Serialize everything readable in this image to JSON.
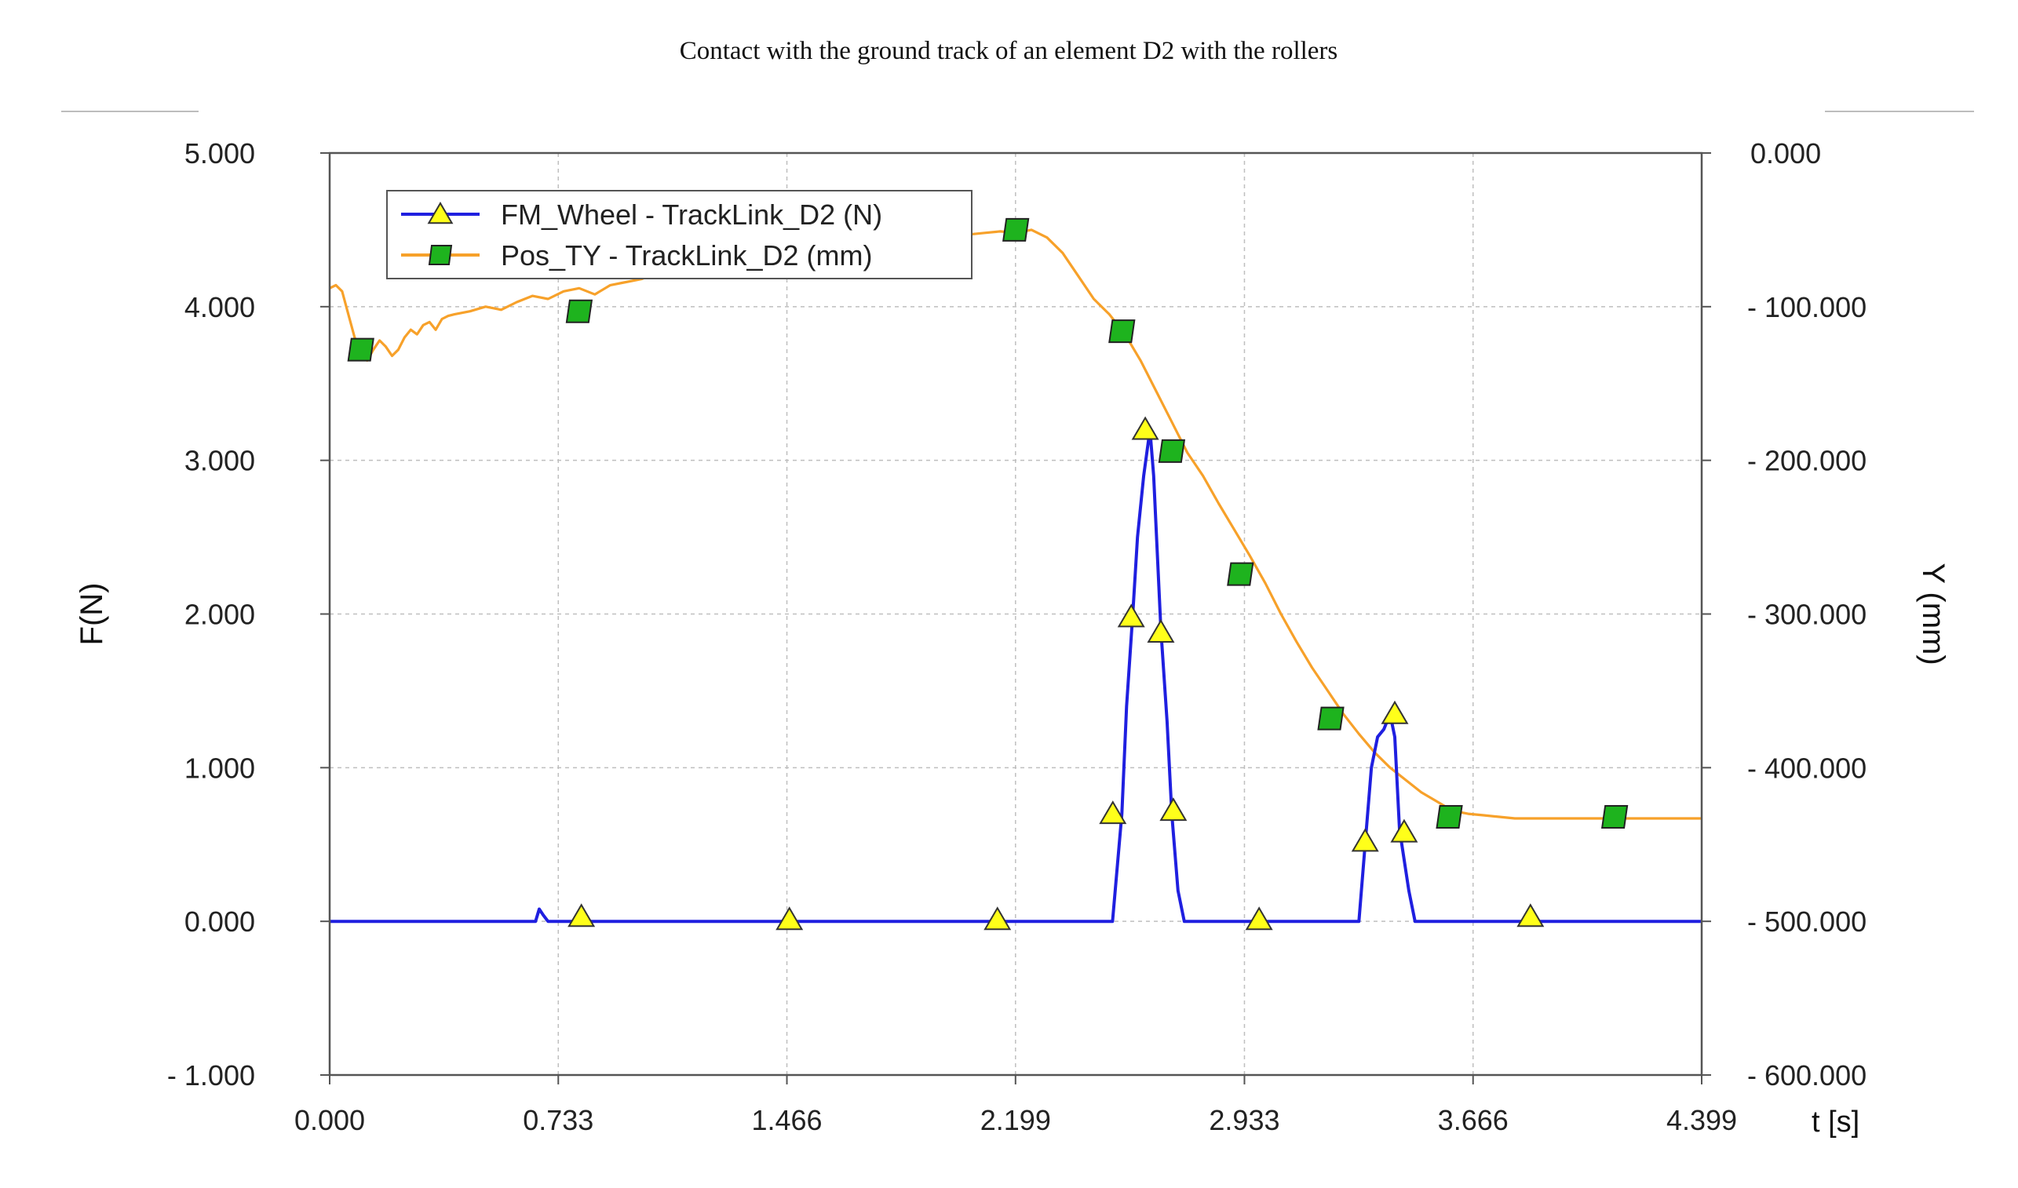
{
  "chart_data": {
    "type": "line",
    "title": "Contact with the ground track of an element D2 with the rollers",
    "xlabel": "t [s]",
    "ylabel": "F(N)",
    "y2label": "Y (mm)",
    "xlim": [
      0,
      4.399
    ],
    "ylim": [
      -1000,
      5000
    ],
    "y2lim": [
      600,
      0
    ],
    "x_ticks": [
      0,
      0.733,
      1.466,
      2.199,
      2.933,
      3.666,
      4.399
    ],
    "x_tick_labels": [
      "0.000",
      "0.733",
      "1.466",
      "2.199",
      "2.933",
      "3.666",
      "4.399"
    ],
    "y_ticks": [
      -1000,
      0,
      1000,
      2000,
      3000,
      4000,
      5000
    ],
    "y_tick_labels": [
      "- 1.000",
      "0.000",
      "1.000",
      "2.000",
      "3.000",
      "4.000",
      "5.000"
    ],
    "y2_ticks": [
      0,
      100,
      200,
      300,
      400,
      500,
      600
    ],
    "y2_tick_labels": [
      "0.000",
      "- 100.000",
      "- 200.000",
      "- 300.000",
      "- 400.000",
      "- 500.000",
      "- 600.000"
    ],
    "grid": true,
    "legend_position": "top-left",
    "series": [
      {
        "name": "FM_Wheel - TrackLink_D2 (N)",
        "axis": "left",
        "color": "#1f1fe0",
        "marker": "triangle",
        "marker_color": "#ffff1a",
        "x": [
          0,
          0.66,
          0.672,
          0.685,
          0.7,
          2.51,
          2.54,
          2.555,
          2.575,
          2.59,
          2.61,
          2.63,
          2.642,
          2.665,
          2.685,
          2.7,
          2.72,
          2.74,
          3.3,
          3.32,
          3.34,
          3.36,
          3.38,
          3.4,
          3.415,
          3.43,
          3.46,
          3.48,
          3.5,
          4.399
        ],
        "y": [
          0,
          0,
          80,
          40,
          0,
          0,
          700,
          1400,
          2000,
          2500,
          2900,
          3200,
          2900,
          1900,
          1300,
          700,
          200,
          0,
          0,
          500,
          1000,
          1200,
          1250,
          1350,
          1200,
          600,
          200,
          0,
          0,
          0
        ],
        "markers": {
          "x": [
            0.807,
            1.474,
            2.141,
            2.511,
            2.57,
            2.615,
            2.665,
            2.705,
            2.98,
            3.32,
            3.415,
            3.445,
            3.85
          ],
          "y": [
            30,
            10,
            10,
            700,
            1980,
            3200,
            1880,
            720,
            10,
            520,
            1350,
            580,
            30
          ]
        }
      },
      {
        "name": "Pos_TY - TrackLink_D2 (mm)",
        "axis": "right",
        "color": "#f7a12a",
        "marker": "square",
        "marker_color": "#1eb31e",
        "x": [
          0,
          0.02,
          0.04,
          0.06,
          0.08,
          0.1,
          0.12,
          0.14,
          0.16,
          0.18,
          0.2,
          0.22,
          0.24,
          0.26,
          0.28,
          0.3,
          0.32,
          0.34,
          0.36,
          0.38,
          0.4,
          0.45,
          0.5,
          0.55,
          0.6,
          0.65,
          0.7,
          0.75,
          0.8,
          0.85,
          0.9,
          0.95,
          1.0,
          1.05,
          1.1,
          1.15,
          1.2,
          1.25,
          1.3,
          1.35,
          1.4,
          1.5,
          1.6,
          1.7,
          1.8,
          1.9,
          2.0,
          2.05,
          2.1,
          2.15,
          2.2,
          2.25,
          2.3,
          2.35,
          2.4,
          2.45,
          2.5,
          2.55,
          2.6,
          2.65,
          2.7,
          2.75,
          2.8,
          2.85,
          2.9,
          2.95,
          3.0,
          3.05,
          3.1,
          3.15,
          3.2,
          3.25,
          3.3,
          3.35,
          3.4,
          3.45,
          3.5,
          3.55,
          3.6,
          3.65,
          3.7,
          3.75,
          3.8,
          3.9,
          4.0,
          4.1,
          4.2,
          4.3,
          4.399
        ],
        "y": [
          88,
          86,
          90,
          105,
          120,
          130,
          135,
          128,
          122,
          126,
          132,
          128,
          120,
          115,
          118,
          112,
          110,
          115,
          108,
          106,
          105,
          103,
          100,
          102,
          97,
          93,
          95,
          90,
          88,
          92,
          86,
          84,
          82,
          78,
          76,
          74,
          72,
          70,
          68,
          66,
          64,
          62,
          60,
          58,
          57,
          55,
          54,
          53,
          52,
          51,
          52,
          50,
          55,
          65,
          80,
          95,
          105,
          118,
          135,
          155,
          175,
          195,
          210,
          228,
          245,
          262,
          280,
          300,
          318,
          335,
          350,
          365,
          378,
          390,
          400,
          408,
          416,
          422,
          428,
          430,
          431,
          432,
          433,
          433,
          433,
          433,
          433,
          433,
          433
        ],
        "markers": {
          "x": [
            0.1,
            0.8,
            2.2,
            2.54,
            2.7,
            2.92,
            3.21,
            3.59,
            4.12
          ],
          "y": [
            128,
            103,
            50,
            116,
            194,
            274,
            368,
            432,
            432
          ]
        }
      }
    ]
  }
}
